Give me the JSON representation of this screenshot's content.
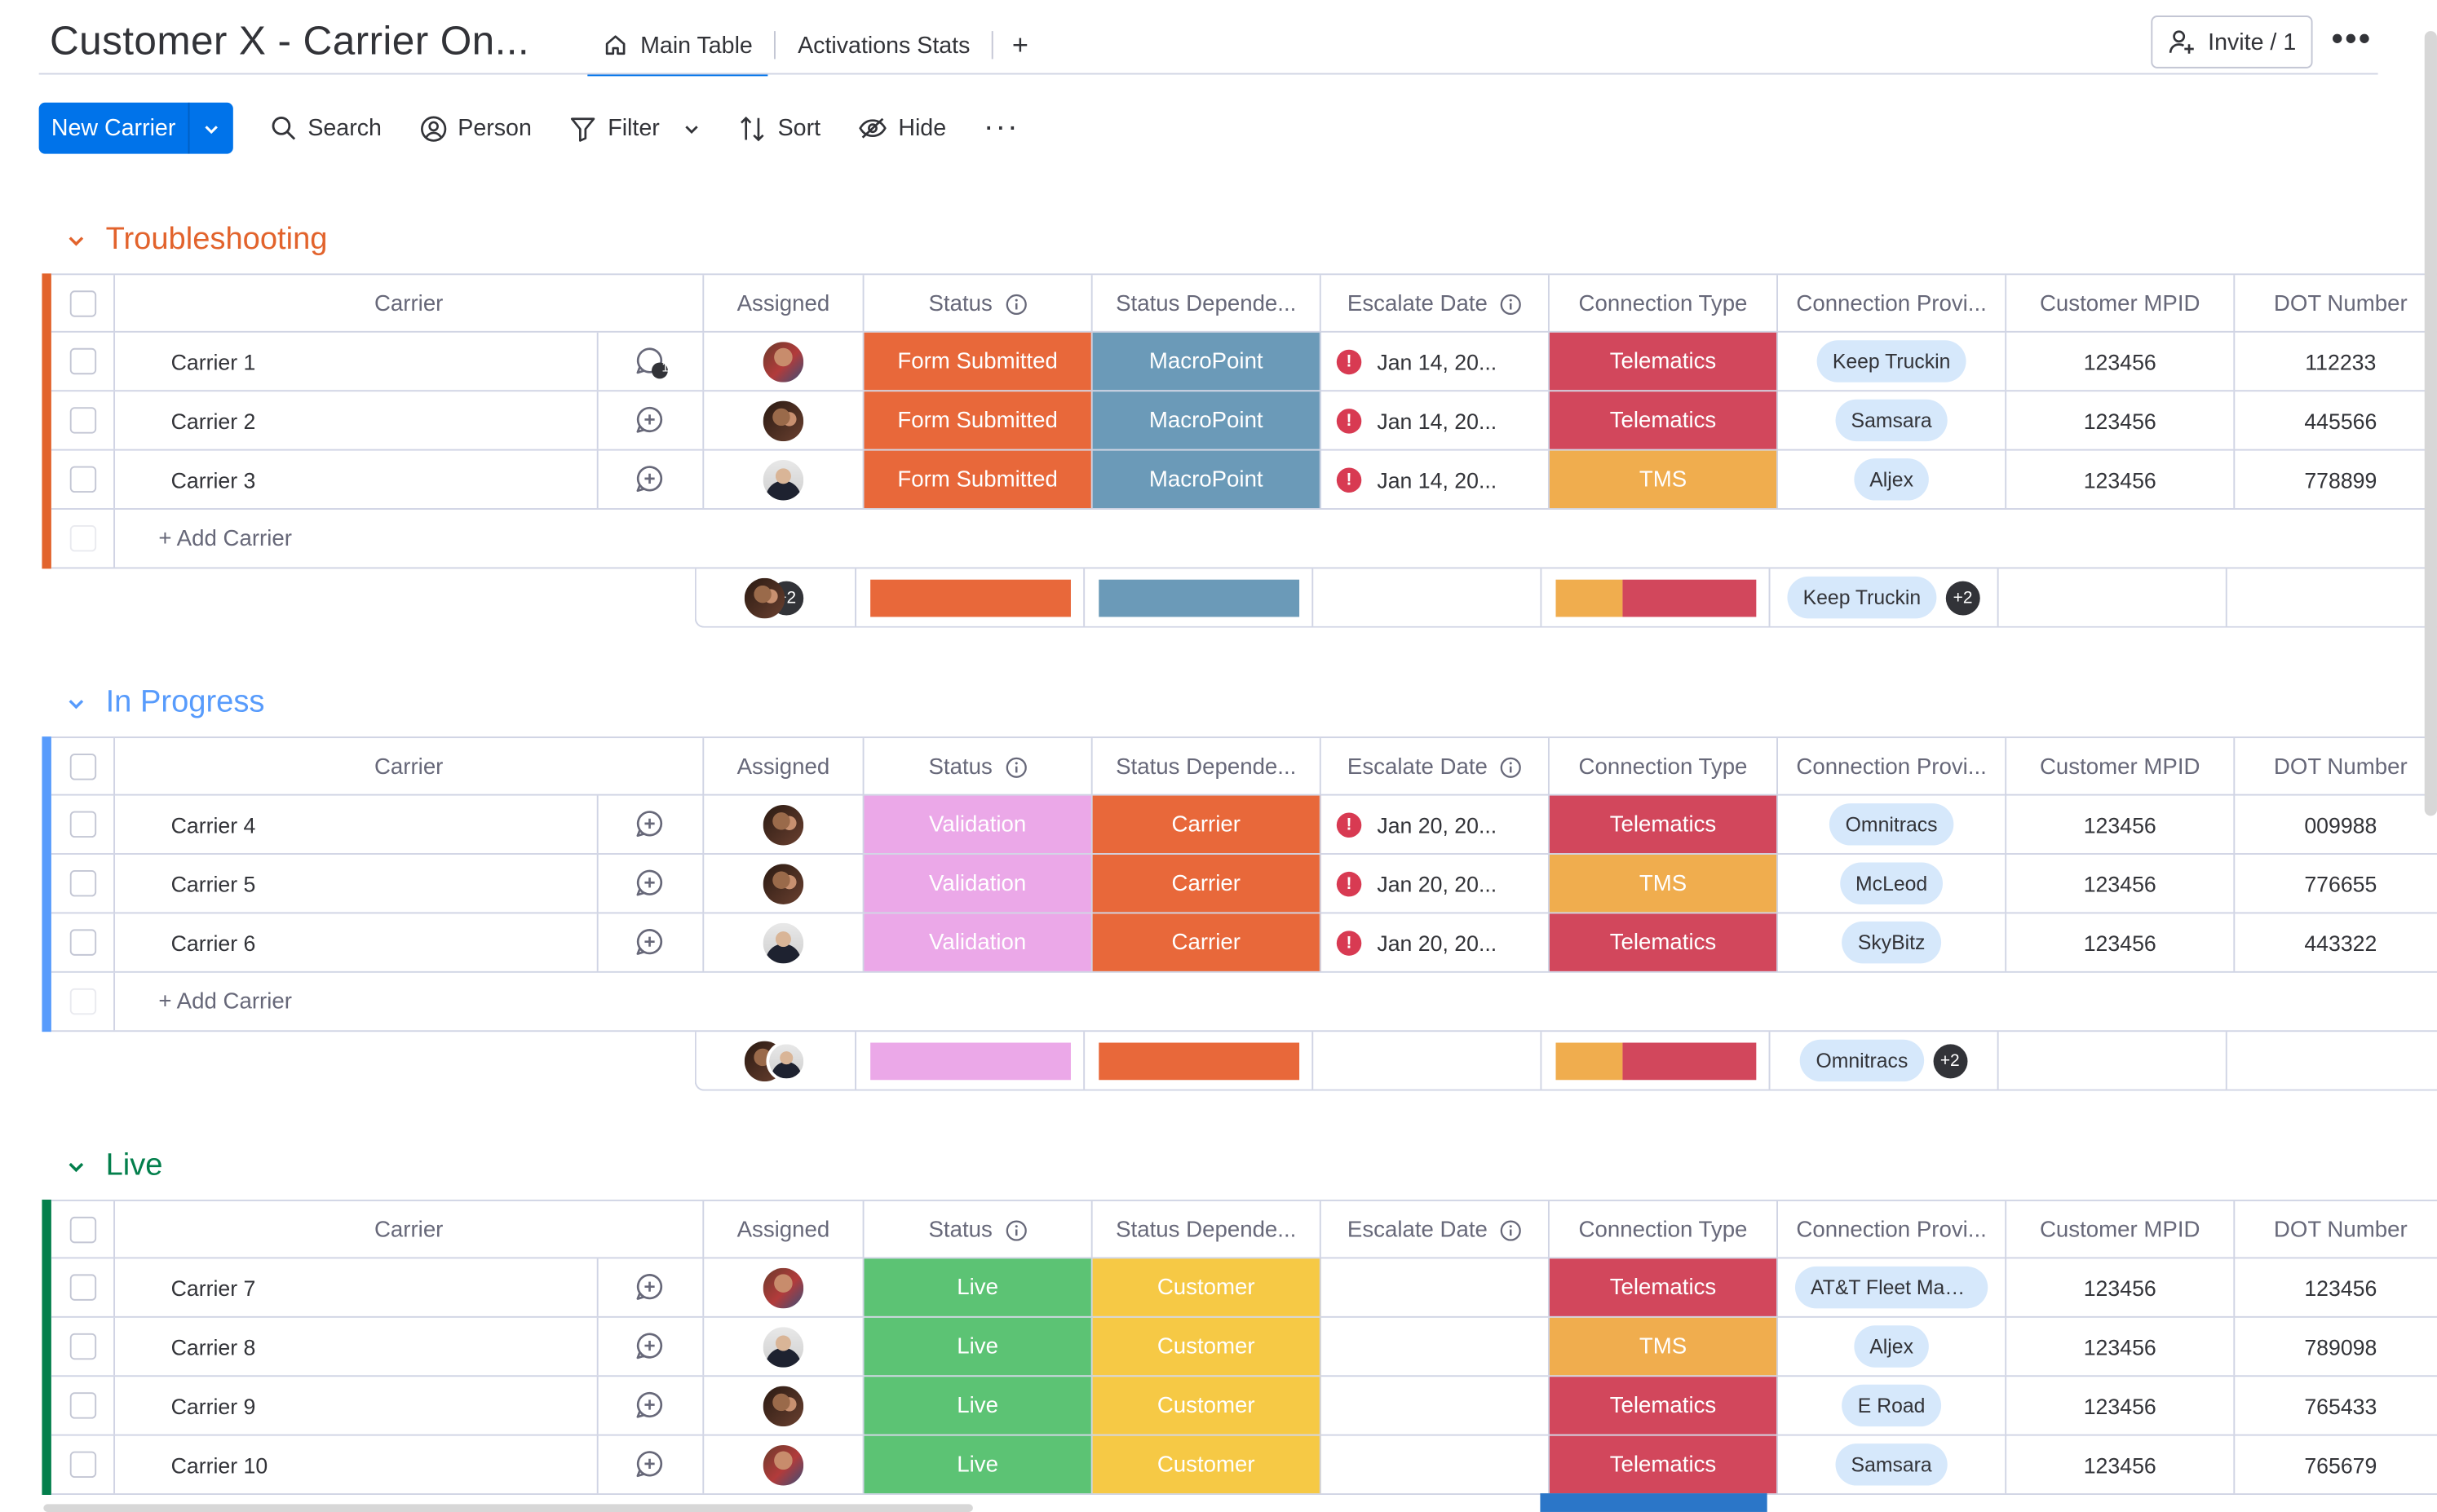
{
  "header": {
    "board_title": "Customer X - Carrier On...",
    "tabs": [
      {
        "label": "Main Table",
        "icon": "home-icon"
      },
      {
        "label": "Activations Stats"
      }
    ],
    "add_tab": "+",
    "invite_label": "Invite / 1",
    "more": "•••"
  },
  "toolbar": {
    "new_label": "New Carrier",
    "search": "Search",
    "person": "Person",
    "filter": "Filter",
    "sort": "Sort",
    "hide": "Hide",
    "more": "···"
  },
  "columns": {
    "carrier": "Carrier",
    "assigned": "Assigned",
    "status": "Status",
    "dependency": "Status Depende...",
    "escalate": "Escalate Date",
    "connection": "Connection Type",
    "provider": "Connection Provi...",
    "mpid": "Customer MPID",
    "dot": "DOT Number"
  },
  "add_carrier": "+ Add Carrier",
  "colors": {
    "troubleshooting": "#e2632c",
    "in_progress": "#579bfc",
    "live": "#037f4c",
    "form_submitted": "#e8683a",
    "macropoint": "#6b9ab8",
    "telematics": "#d2475c",
    "tms": "#f0ad4e",
    "validation": "#eba8e8",
    "carrier_dep": "#e8683a",
    "live_status": "#5cc374",
    "customer_dep": "#f6c945",
    "accent": "#0073ea"
  },
  "groups": [
    {
      "title": "Troubleshooting",
      "rows": [
        {
          "name": "Carrier 1",
          "updates": "1",
          "avatar": "a1",
          "status": "Form Submitted",
          "dependency": "MacroPoint",
          "escalate": "Jan 14, 20...",
          "connection": "Telematics",
          "provider": "Keep Truckin",
          "mpid": "123456",
          "dot": "112233"
        },
        {
          "name": "Carrier 2",
          "updates": "",
          "avatar": "a2",
          "status": "Form Submitted",
          "dependency": "MacroPoint",
          "escalate": "Jan 14, 20...",
          "connection": "Telematics",
          "provider": "Samsara",
          "mpid": "123456",
          "dot": "445566"
        },
        {
          "name": "Carrier 3",
          "updates": "",
          "avatar": "a3",
          "status": "Form Submitted",
          "dependency": "MacroPoint",
          "escalate": "Jan 14, 20...",
          "connection": "TMS",
          "provider": "Aljex",
          "mpid": "123456",
          "dot": "778899"
        }
      ],
      "summary": {
        "avatar_more": "+2",
        "provider": "Keep Truckin",
        "provider_more": "+2",
        "connection_tms_fraction": 0.33
      }
    },
    {
      "title": "In Progress",
      "rows": [
        {
          "name": "Carrier 4",
          "updates": "",
          "avatar": "a2",
          "status": "Validation",
          "dependency": "Carrier",
          "escalate": "Jan 20, 20...",
          "connection": "Telematics",
          "provider": "Omnitracs",
          "mpid": "123456",
          "dot": "009988"
        },
        {
          "name": "Carrier 5",
          "updates": "",
          "avatar": "a2",
          "status": "Validation",
          "dependency": "Carrier",
          "escalate": "Jan 20, 20...",
          "connection": "TMS",
          "provider": "McLeod",
          "mpid": "123456",
          "dot": "776655"
        },
        {
          "name": "Carrier 6",
          "updates": "",
          "avatar": "a3",
          "status": "Validation",
          "dependency": "Carrier",
          "escalate": "Jan 20, 20...",
          "connection": "Telematics",
          "provider": "SkyBitz",
          "mpid": "123456",
          "dot": "443322"
        }
      ],
      "summary": {
        "avatar_more": "",
        "provider": "Omnitracs",
        "provider_more": "+2",
        "connection_tms_fraction": 0.33
      }
    },
    {
      "title": "Live",
      "rows": [
        {
          "name": "Carrier 7",
          "updates": "",
          "avatar": "a1",
          "status": "Live",
          "dependency": "Customer",
          "escalate": "",
          "connection": "Telematics",
          "provider": "AT&T Fleet Mana...",
          "mpid": "123456",
          "dot": "123456"
        },
        {
          "name": "Carrier 8",
          "updates": "",
          "avatar": "a3",
          "status": "Live",
          "dependency": "Customer",
          "escalate": "",
          "connection": "TMS",
          "provider": "Aljex",
          "mpid": "123456",
          "dot": "789098"
        },
        {
          "name": "Carrier 9",
          "updates": "",
          "avatar": "a2",
          "status": "Live",
          "dependency": "Customer",
          "escalate": "",
          "connection": "Telematics",
          "provider": "E Road",
          "mpid": "123456",
          "dot": "765433"
        },
        {
          "name": "Carrier 10",
          "updates": "",
          "avatar": "a1",
          "status": "Live",
          "dependency": "Customer",
          "escalate": "",
          "connection": "Telematics",
          "provider": "Samsara",
          "mpid": "123456",
          "dot": "765679"
        }
      ]
    }
  ]
}
